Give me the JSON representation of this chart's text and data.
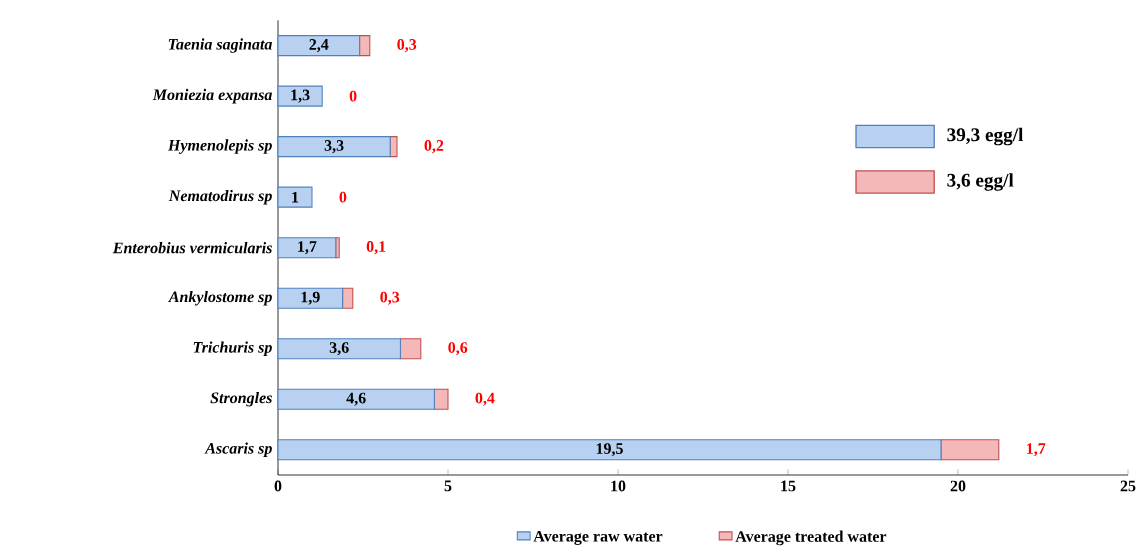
{
  "chart_data": {
    "type": "bar",
    "orientation": "horizontal",
    "stacked": true,
    "categories": [
      "Taenia saginata",
      "Moniezia expansa",
      "Hymenolepis sp",
      "Nematodirus sp",
      "Enterobius vermicularis",
      "Ankylostome sp",
      "Trichuris sp",
      "Strongles",
      "Ascaris sp"
    ],
    "series": [
      {
        "name": "Average raw water",
        "color": "#b9d1f1",
        "values": [
          2.4,
          1.3,
          3.3,
          1,
          1.7,
          1.9,
          3.6,
          4.6,
          19.5
        ],
        "value_labels": [
          "2,4",
          "1,3",
          "3,3",
          "1",
          "1,7",
          "1,9",
          "3,6",
          "4,6",
          "19,5"
        ]
      },
      {
        "name": "Average treated water",
        "color": "#f5b8b8",
        "values": [
          0.3,
          0,
          0.2,
          0,
          0.1,
          0.3,
          0.6,
          0.4,
          1.7
        ],
        "value_labels": [
          "0,3",
          "0",
          "0,2",
          "0",
          "0,1",
          "0,3",
          "0,6",
          "0,4",
          "1,7"
        ]
      }
    ],
    "xlim": [
      0,
      25
    ],
    "xticks": [
      0,
      5,
      10,
      15,
      20,
      25
    ],
    "annotations": [
      "39,3 egg/l",
      "3,6 egg/l"
    ],
    "grid": false,
    "legend": "bottom"
  }
}
